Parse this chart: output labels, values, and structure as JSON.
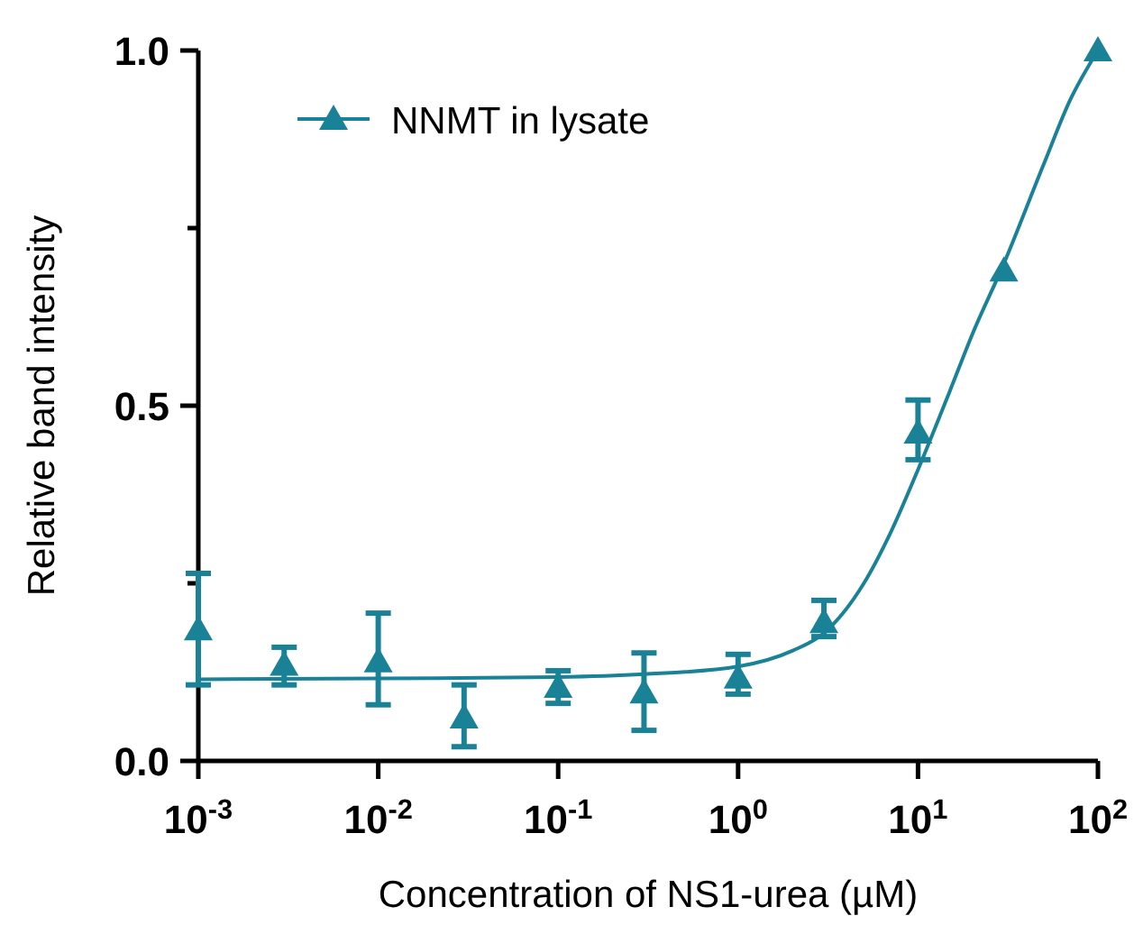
{
  "chart_data": {
    "type": "scatter",
    "xlabel": "Concentration of NS1-urea (µM)",
    "ylabel": "Relative band intensity",
    "log": "x",
    "xlim": [
      0.001,
      100
    ],
    "ylim": [
      0,
      1
    ],
    "xticks": [
      {
        "value": 0.001,
        "label": "10$^{-3}$"
      },
      {
        "value": 0.01,
        "label": "10$^{-2}$"
      },
      {
        "value": 0.1,
        "label": "10$^{-1}$"
      },
      {
        "value": 1,
        "label": "10$^{0}$"
      },
      {
        "value": 10,
        "label": "10$^{1}$"
      },
      {
        "value": 100,
        "label": "10$^{2}$"
      }
    ],
    "yticks": [
      {
        "value": 0,
        "label": "0.0"
      },
      {
        "value": 0.25,
        "label": null
      },
      {
        "value": 0.5,
        "label": "0.5"
      },
      {
        "value": 0.75,
        "label": null
      },
      {
        "value": 1,
        "label": "1.0"
      }
    ],
    "grid": false,
    "legend": "top left",
    "marker": "triangle",
    "series": [
      {
        "name": "NNMT in lysate",
        "type": "scatter",
        "color": "#1a8296",
        "x": [
          0.001,
          0.003,
          0.01,
          0.03,
          0.1,
          0.3,
          1,
          3,
          10,
          30,
          100
        ],
        "values": [
          0.185,
          0.135,
          0.14,
          0.061,
          0.104,
          0.096,
          0.117,
          0.195,
          0.462,
          0.69,
          1.0
        ],
        "errors": [
          [
            0.107,
            0.264
          ],
          [
            0.107,
            0.16
          ],
          [
            0.079,
            0.208
          ],
          [
            0.02,
            0.107
          ],
          [
            0.081,
            0.127
          ],
          [
            0.043,
            0.152
          ],
          [
            0.094,
            0.15
          ],
          [
            0.175,
            0.226
          ],
          [
            0.424,
            0.508
          ],
          null,
          null
        ]
      },
      {
        "type": "line",
        "color": "#1a8296",
        "marker": "none",
        "x": [
          0.001,
          0.01,
          0.1,
          0.3,
          1,
          2,
          3,
          5,
          7,
          10,
          15,
          20,
          30,
          50,
          70,
          100
        ],
        "values": [
          0.115,
          0.116,
          0.118,
          0.122,
          0.133,
          0.155,
          0.18,
          0.25,
          0.32,
          0.41,
          0.52,
          0.6,
          0.7,
          0.84,
          0.93,
          1.0
        ]
      }
    ]
  }
}
